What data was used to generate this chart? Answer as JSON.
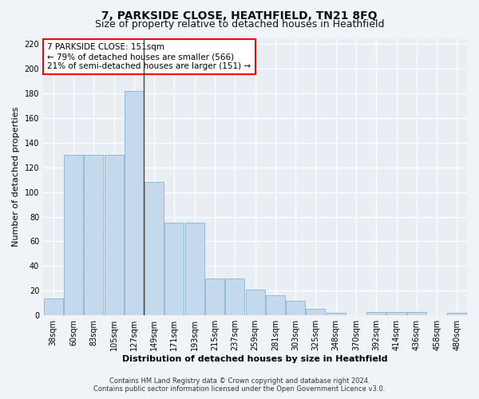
{
  "title": "7, PARKSIDE CLOSE, HEATHFIELD, TN21 8FQ",
  "subtitle": "Size of property relative to detached houses in Heathfield",
  "xlabel": "Distribution of detached houses by size in Heathfield",
  "ylabel": "Number of detached properties",
  "categories": [
    "38sqm",
    "60sqm",
    "83sqm",
    "105sqm",
    "127sqm",
    "149sqm",
    "171sqm",
    "193sqm",
    "215sqm",
    "237sqm",
    "259sqm",
    "281sqm",
    "303sqm",
    "325sqm",
    "348sqm",
    "370sqm",
    "392sqm",
    "414sqm",
    "436sqm",
    "458sqm",
    "480sqm"
  ],
  "values": [
    14,
    130,
    130,
    130,
    182,
    108,
    75,
    75,
    30,
    30,
    21,
    16,
    12,
    5,
    2,
    0,
    3,
    3,
    3,
    0,
    2
  ],
  "bar_color_default": "#c5d9ed",
  "bar_edge_color": "#8ab4d4",
  "vline_x": 4.5,
  "annotation_text": "7 PARKSIDE CLOSE: 151sqm\n← 79% of detached houses are smaller (566)\n21% of semi-detached houses are larger (151) →",
  "ylim": [
    0,
    225
  ],
  "yticks": [
    0,
    20,
    40,
    60,
    80,
    100,
    120,
    140,
    160,
    180,
    200,
    220
  ],
  "footer_line1": "Contains HM Land Registry data © Crown copyright and database right 2024.",
  "footer_line2": "Contains public sector information licensed under the Open Government Licence v3.0.",
  "background_color": "#f0f4f8",
  "plot_bg_color": "#e8eef4",
  "grid_color": "#ffffff",
  "title_fontsize": 10,
  "subtitle_fontsize": 9,
  "axis_label_fontsize": 8,
  "tick_fontsize": 7,
  "footer_fontsize": 6,
  "annotation_fontsize": 7.5
}
